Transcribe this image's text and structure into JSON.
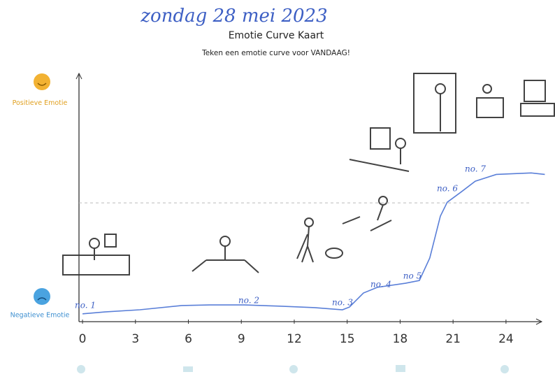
{
  "chart_data": {
    "type": "line",
    "subtitle_handwritten": "zondag 28 mei 2023",
    "title": "Emotie Curve Kaart",
    "subtitle": "Teken een emotie curve voor VANDAAG!",
    "xlim": [
      -0.2,
      26.5
    ],
    "xticks": [
      0,
      3,
      6,
      9,
      12,
      15,
      18,
      21,
      24
    ],
    "ylim": [
      -0.3,
      11.4
    ],
    "yticks": [
      {
        "value": 0,
        "label": "Negatieve Emotie"
      },
      {
        "value": 10,
        "label": "Positieve Emotie"
      }
    ],
    "reference_line": 5.3,
    "series": [
      {
        "color": "#5a7fd8",
        "x": [
          0,
          1.27,
          3.25,
          5.62,
          7.21,
          9.19,
          11.17,
          13.15,
          14.73,
          15.13,
          15.92,
          16.71,
          18.3,
          19.09,
          19.68,
          20.28,
          20.67,
          21.47,
          22.26,
          23.45,
          25.43,
          26.2
        ],
        "values": [
          0.07,
          0.16,
          0.26,
          0.46,
          0.49,
          0.49,
          0.43,
          0.36,
          0.26,
          0.39,
          1.05,
          1.32,
          1.51,
          1.64,
          2.7,
          4.67,
          5.33,
          5.82,
          6.32,
          6.64,
          6.71,
          6.64
        ]
      }
    ],
    "annotations": [
      "no. 1",
      "no. 2",
      "no. 3",
      "no. 4",
      "no 5",
      "no. 6",
      "no. 7"
    ]
  }
}
